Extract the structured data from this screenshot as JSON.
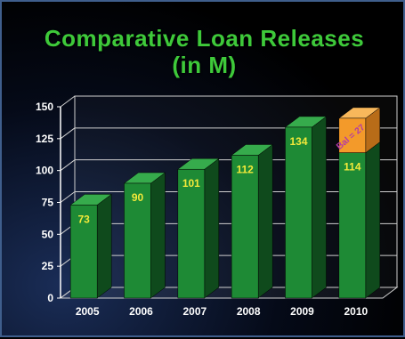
{
  "chart_data": {
    "type": "bar",
    "title_lines": [
      "Comparative Loan Releases",
      "(in M)"
    ],
    "categories": [
      "2005",
      "2006",
      "2007",
      "2008",
      "2009",
      "2010"
    ],
    "values": [
      73,
      90,
      101,
      112,
      134,
      114
    ],
    "value_labels": [
      "73",
      "90",
      "101",
      "112",
      "134",
      "114"
    ],
    "stacked_top": {
      "category": "2010",
      "value": 27,
      "label": "Bal = 27"
    },
    "yticks": [
      "0",
      "25",
      "50",
      "75",
      "100",
      "125",
      "150"
    ],
    "ytick_values": [
      0,
      25,
      50,
      75,
      100,
      125,
      150
    ],
    "ylim": [
      0,
      150
    ],
    "grid": true,
    "colors": {
      "bar": "#1e8a35",
      "bar_side": "#0f4a1c",
      "bar_top": "#36ab4c",
      "label": "#f2e93a",
      "balance": "#f39a2a",
      "balance_side": "#b86c18",
      "balance_top": "#f8b85b",
      "balance_label": "#b23aa8"
    }
  }
}
